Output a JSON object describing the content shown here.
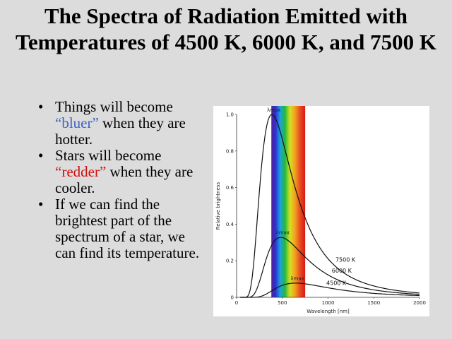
{
  "slide": {
    "title": "The Spectra of Radiation Emitted with Temperatures of 4500 K, 6000 K, and 7500 K",
    "bullet_glyph": "•",
    "bullets": [
      {
        "before": "Things will become ",
        "highlight": "“bluer”",
        "after": " when they are hotter.",
        "highlight_color": "#3b63c4"
      },
      {
        "before": "Stars will become ",
        "highlight": "“redder”",
        "after": " when they are cooler.",
        "highlight_color": "#d01010"
      },
      {
        "before": "If we can find the brightest part of the spectrum of a star, we can find its temperature.",
        "highlight": "",
        "after": ""
      }
    ]
  },
  "chart_data": {
    "type": "line",
    "xlabel": "Wavelength [nm]",
    "ylabel": "Relative brightness",
    "xlim": [
      0,
      2000
    ],
    "ylim": [
      0,
      1.0
    ],
    "x_ticks": [
      "0",
      "500",
      "1000",
      "1500",
      "2000"
    ],
    "y_ticks": [
      "0",
      "0.2",
      "0.4",
      "0.6",
      "0.8",
      "1.0"
    ],
    "visible_band_nm": [
      380,
      750
    ],
    "peak_marker_label": "λmax",
    "series": [
      {
        "name": "7500 K",
        "temperature": 7500,
        "peak_nm": 386,
        "peak_value": 1.0,
        "color": "#111111"
      },
      {
        "name": "6000 K",
        "temperature": 6000,
        "peak_nm": 483,
        "peak_value": 0.33,
        "color": "#111111"
      },
      {
        "name": "4500 K",
        "temperature": 4500,
        "peak_nm": 644,
        "peak_value": 0.08,
        "color": "#111111"
      }
    ]
  }
}
